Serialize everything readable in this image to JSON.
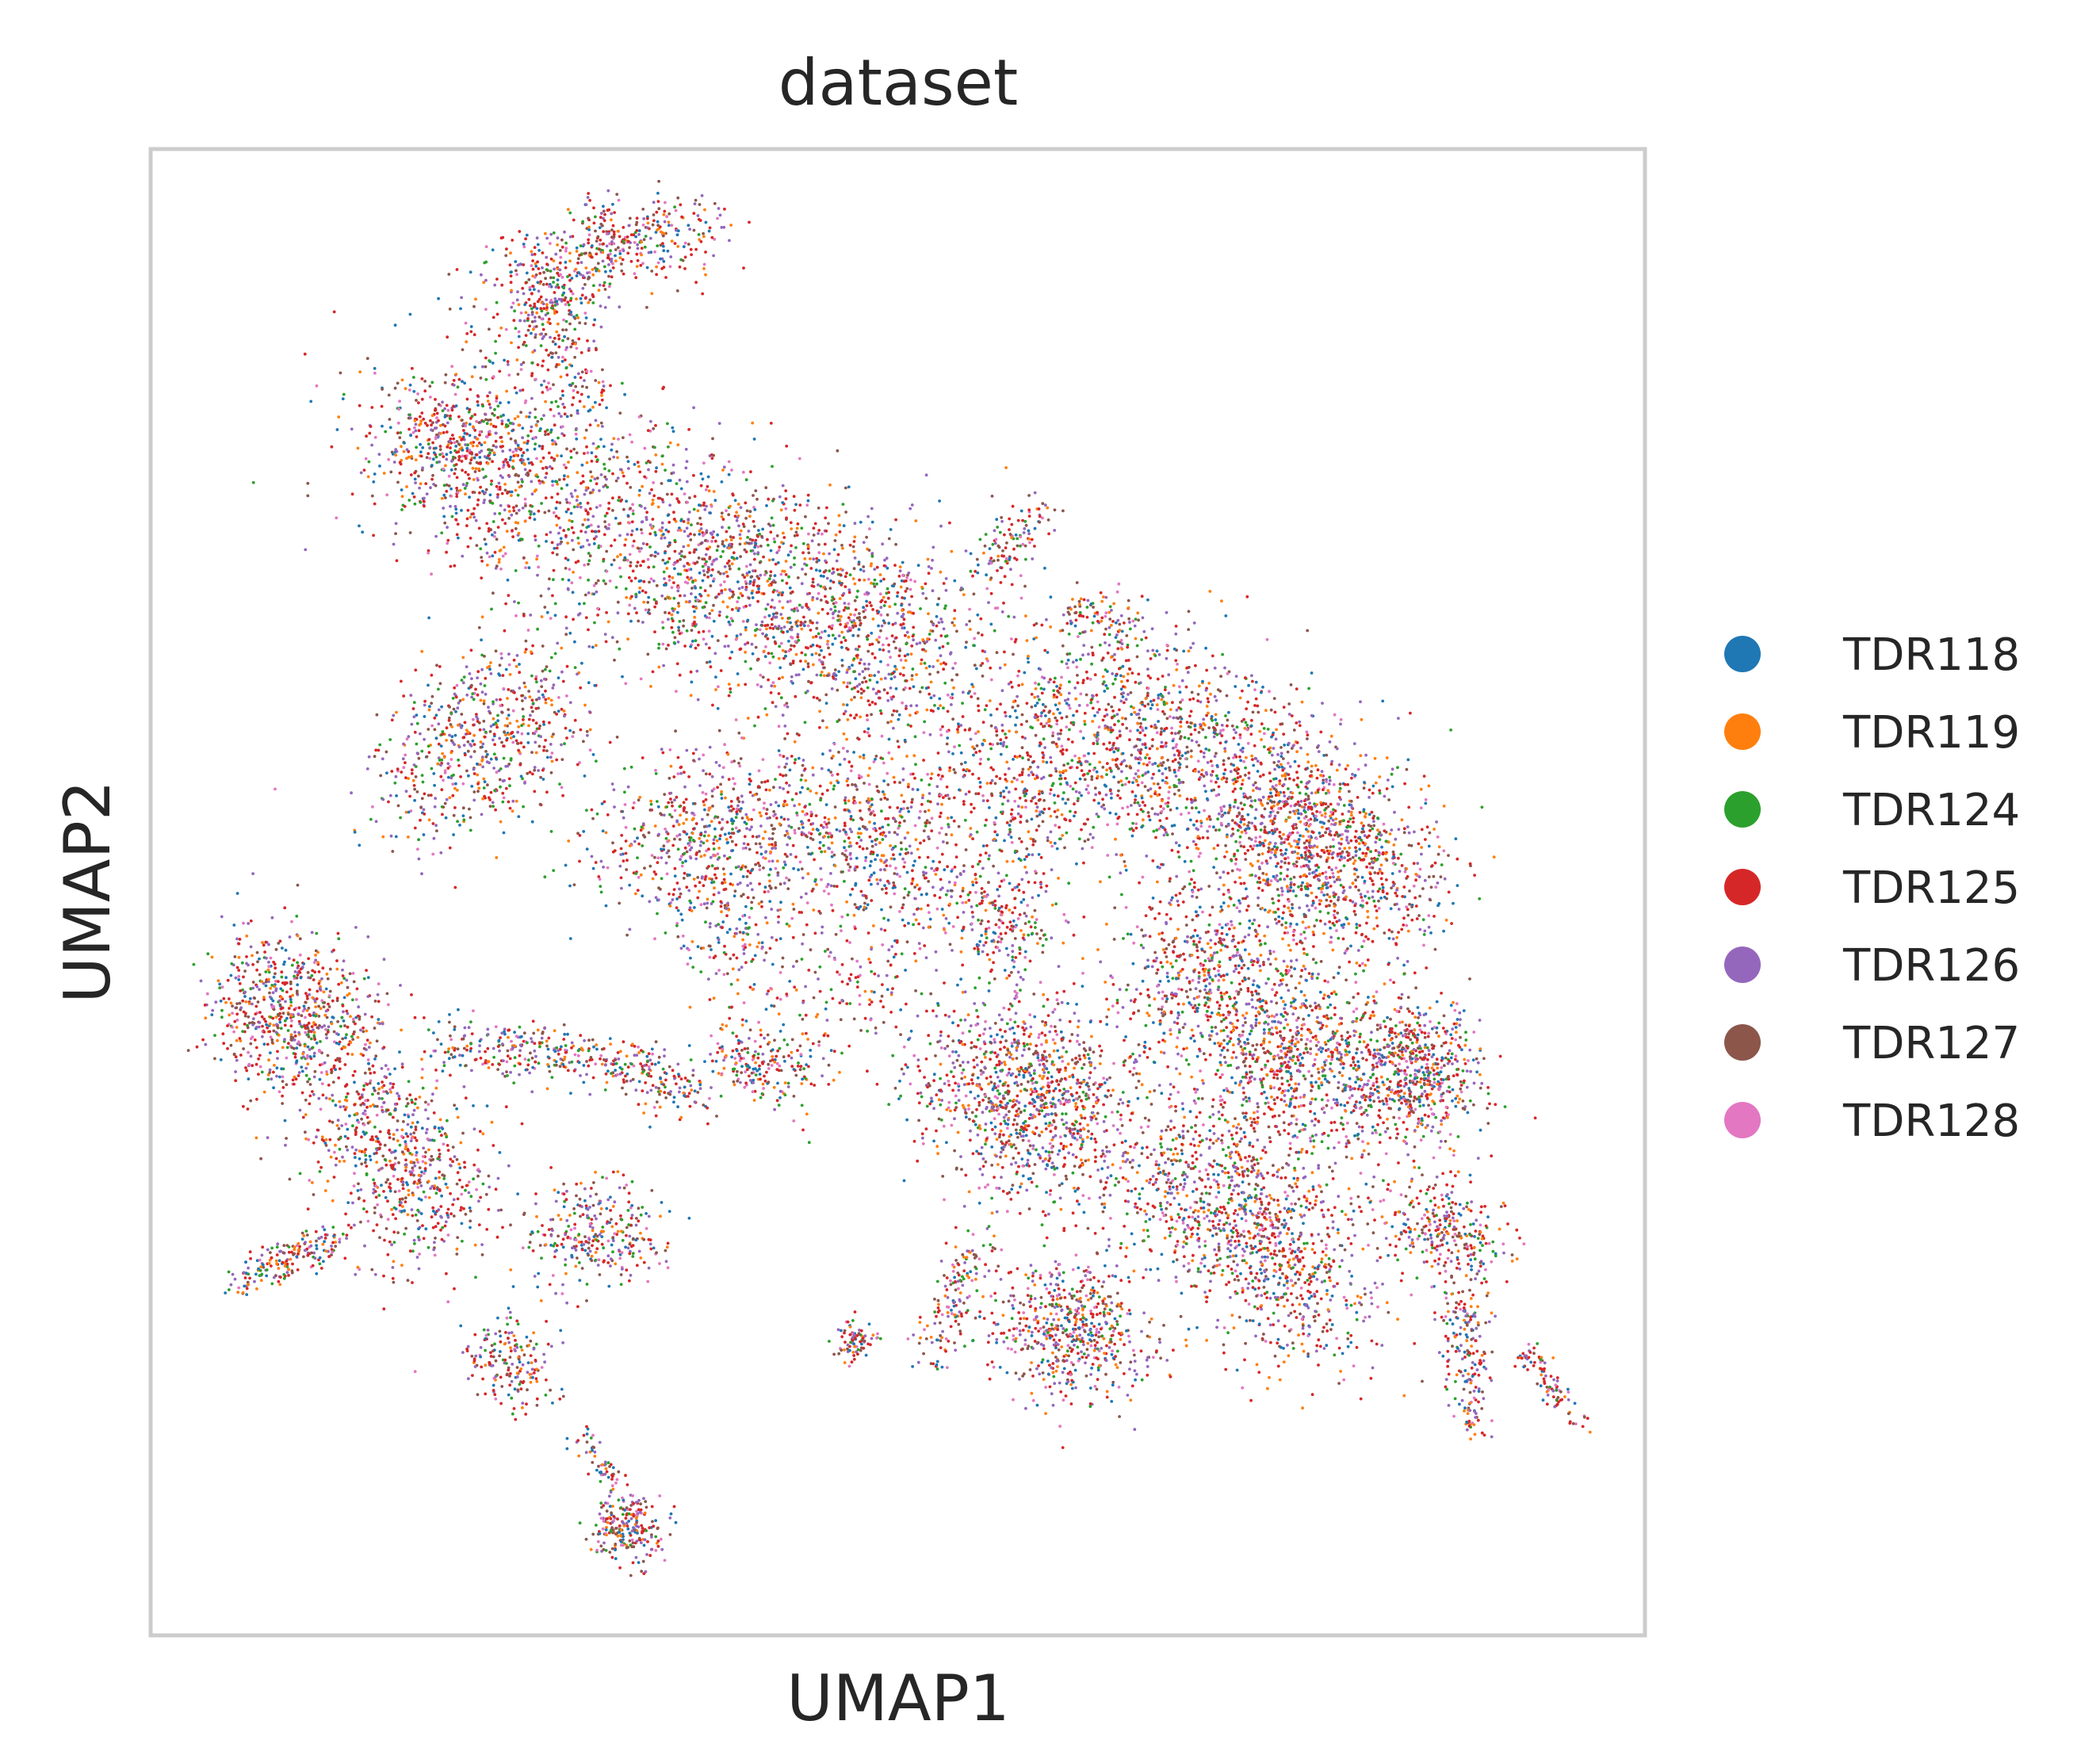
{
  "chart_data": {
    "type": "scatter",
    "title": "dataset",
    "xlabel": "UMAP1",
    "ylabel": "UMAP2",
    "xticks": [],
    "yticks": [],
    "grid": false,
    "legend_placement": "right, outside plot",
    "series": [
      {
        "name": "TDR118",
        "color": "#1f77b4"
      },
      {
        "name": "TDR119",
        "color": "#ff7f0e"
      },
      {
        "name": "TDR124",
        "color": "#2ca02c"
      },
      {
        "name": "TDR125",
        "color": "#d62728"
      },
      {
        "name": "TDR126",
        "color": "#9467bd"
      },
      {
        "name": "TDR127",
        "color": "#8c564b"
      },
      {
        "name": "TDR128",
        "color": "#e377c2"
      }
    ],
    "frame_color": "#cccccc"
  }
}
